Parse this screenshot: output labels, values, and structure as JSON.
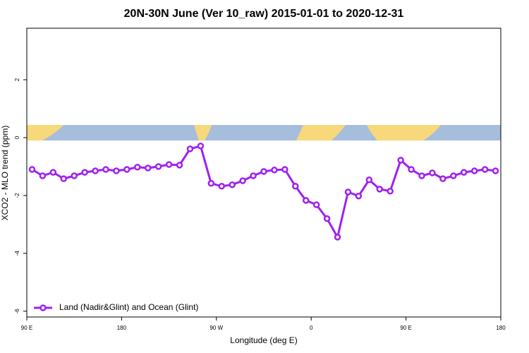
{
  "chart_data": {
    "type": "line",
    "title": "20N-30N June (Ver 10_raw)   2015-01-01 to 2020-12-31",
    "x_label": "Longitude (deg E)",
    "y_label": "XCO2 - MLO trend (ppm)",
    "x": [
      95,
      105,
      115,
      125,
      135,
      145,
      155,
      165,
      175,
      185,
      195,
      205,
      215,
      225,
      235,
      245,
      255,
      265,
      275,
      285,
      295,
      305,
      315,
      325,
      335,
      345,
      355,
      365,
      375,
      385,
      395,
      405,
      415,
      425,
      435,
      445,
      455,
      465,
      475,
      485,
      495,
      505,
      515,
      525,
      535
    ],
    "series": [
      {
        "name": "Land (Nadir&Glint) and Ocean (Glint)",
        "color": "#a020f0",
        "values": [
          -1.1,
          -1.32,
          -1.2,
          -1.42,
          -1.32,
          -1.2,
          -1.15,
          -1.1,
          -1.15,
          -1.1,
          -1.02,
          -1.05,
          -1.0,
          -0.93,
          -0.95,
          -0.39,
          -0.29,
          -1.58,
          -1.68,
          -1.63,
          -1.49,
          -1.32,
          -1.17,
          -1.12,
          -1.1,
          -1.68,
          -2.17,
          -2.32,
          -2.8,
          -3.44,
          -1.88,
          -2.02,
          -1.46,
          -1.78,
          -1.85,
          -0.78,
          -1.1,
          -1.32,
          -1.22,
          -1.42,
          -1.32,
          -1.2,
          -1.15,
          -1.1,
          -1.15
        ]
      }
    ],
    "xlim": [
      90,
      540
    ],
    "xticks": [
      {
        "value": 90,
        "label": "90 E"
      },
      {
        "value": 180,
        "label": "180"
      },
      {
        "value": 270,
        "label": "90 W"
      },
      {
        "value": 360,
        "label": "0"
      },
      {
        "value": 450,
        "label": "90 E"
      },
      {
        "value": 540,
        "label": "180"
      }
    ],
    "ylim": [
      -6.2,
      3.78
    ],
    "yticks": [
      -6,
      -4,
      -2,
      0,
      2
    ],
    "legend": "bottom-left"
  }
}
